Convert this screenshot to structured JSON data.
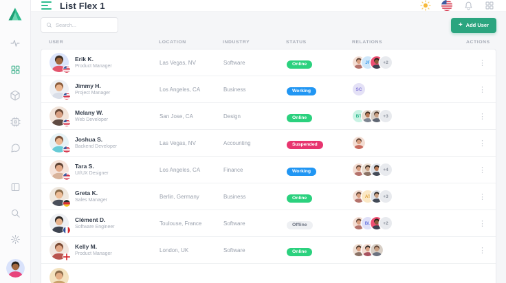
{
  "app": {
    "title": "List Flex 1",
    "accent_green": "#2ba57f",
    "logo_icon": "triangle-logo"
  },
  "sidebar": {
    "nav_icons": [
      {
        "name": "activity-icon",
        "active": false
      },
      {
        "name": "apps-grid-icon",
        "active": true
      },
      {
        "name": "package-icon",
        "active": false
      },
      {
        "name": "cpu-icon",
        "active": false
      },
      {
        "name": "chat-icon",
        "active": false
      }
    ],
    "bottom_icons": [
      {
        "name": "layout-columns-icon"
      },
      {
        "name": "search-icon"
      },
      {
        "name": "gear-icon"
      }
    ],
    "profile_avatar": {
      "bg": "#d9e2fb",
      "skin": "#a3683f",
      "hair": "#26211d",
      "shirt": "#e8447c"
    }
  },
  "topbar": {
    "icons": [
      {
        "name": "theme-sun-icon"
      },
      {
        "name": "language-flag-us-icon"
      },
      {
        "name": "notifications-bell-icon"
      },
      {
        "name": "apps-launcher-icon"
      }
    ]
  },
  "toolbar": {
    "search_placeholder": "Search...",
    "add_user_label": "Add User",
    "add_user_plus": "+"
  },
  "table": {
    "columns": [
      "USER",
      "LOCATION",
      "INDUSTRY",
      "STATUS",
      "RELATIONS",
      "ACTIONS"
    ],
    "status_styles": {
      "online": {
        "bg": "#2bd17e",
        "color": "#ffffff"
      },
      "working": {
        "bg": "#2196f3",
        "color": "#ffffff"
      },
      "suspended": {
        "bg": "#e7356f",
        "color": "#ffffff"
      },
      "offline": {
        "bg": "#eef0f3",
        "color": "#6b7280"
      }
    },
    "rows": [
      {
        "name": "Erik K.",
        "role": "Product Manager",
        "flag": "us",
        "location": "Las Vegas, NV",
        "industry": "Software",
        "status": {
          "label": "Online",
          "type": "online"
        },
        "avatar": {
          "bg": "#dbe4fb",
          "skin": "#a3683f",
          "hair": "#3e2e22",
          "shirt": "#e4556d"
        },
        "relations": [
          {
            "type": "photo",
            "colors": {
              "bg": "#f3ddd3",
              "skin": "#d99f80",
              "hair": "#5f4334",
              "shirt": "#b4726b"
            }
          },
          {
            "type": "initials",
            "text": "JF",
            "bg": "#cfe7fa",
            "color": "#3f9ce9"
          },
          {
            "type": "photo",
            "colors": {
              "bg": "#ee4f72",
              "skin": "#8a5a3b",
              "hair": "#26211d",
              "shirt": "#3c4250"
            }
          },
          {
            "type": "more",
            "text": "+2"
          }
        ]
      },
      {
        "name": "Jimmy H.",
        "role": "Project Manager",
        "flag": "us",
        "location": "Los Angeles, CA",
        "industry": "Business",
        "status": {
          "label": "Working",
          "type": "working"
        },
        "avatar": {
          "bg": "#eef0f4",
          "skin": "#eab58f",
          "hair": "#8a5c3b",
          "shirt": "#d9dee8"
        },
        "relations": [
          {
            "type": "initials",
            "text": "SC",
            "bg": "#e4e1f6",
            "color": "#8278d8"
          }
        ]
      },
      {
        "name": "Melany W.",
        "role": "Web Developer",
        "flag": "us",
        "location": "San Jose, CA",
        "industry": "Design",
        "status": {
          "label": "Online",
          "type": "online"
        },
        "avatar": {
          "bg": "#f2e4da",
          "skin": "#d9a184",
          "hair": "#6b4a38",
          "shirt": "#5f4a42"
        },
        "relations": [
          {
            "type": "initials",
            "text": "BT",
            "bg": "#c9f3e4",
            "color": "#2bb88c"
          },
          {
            "type": "photo",
            "colors": {
              "bg": "#e9dccf",
              "skin": "#b97a55",
              "hair": "#3e2e22",
              "shirt": "#7d8591"
            }
          },
          {
            "type": "photo",
            "colors": {
              "bg": "#d8cfc6",
              "skin": "#caa184",
              "hair": "#4a3628",
              "shirt": "#5f6673"
            }
          },
          {
            "type": "more",
            "text": "+3"
          }
        ]
      },
      {
        "name": "Joshua S.",
        "role": "Backend Developer",
        "flag": "us",
        "location": "Las Vegas, NV",
        "industry": "Accounting",
        "status": {
          "label": "Suspended",
          "type": "suspended"
        },
        "avatar": {
          "bg": "#e6f2f6",
          "skin": "#ecb892",
          "hair": "#7b533a",
          "shirt": "#67cbd6"
        },
        "relations": [
          {
            "type": "photo",
            "colors": {
              "bg": "#f3ddd3",
              "skin": "#d99f80",
              "hair": "#5f4334",
              "shirt": "#c96b5e"
            }
          }
        ]
      },
      {
        "name": "Tara S.",
        "role": "UI/UX Designer",
        "flag": "us",
        "location": "Los Angeles, CA",
        "industry": "Finance",
        "status": {
          "label": "Working",
          "type": "working"
        },
        "avatar": {
          "bg": "#f6e3da",
          "skin": "#e3a988",
          "hair": "#5f4334",
          "shirt": "#d8b29a"
        },
        "relations": [
          {
            "type": "photo",
            "colors": {
              "bg": "#f3ddd3",
              "skin": "#d99f80",
              "hair": "#5f4334",
              "shirt": "#b4726b"
            }
          },
          {
            "type": "photo",
            "colors": {
              "bg": "#e9dccf",
              "skin": "#caa184",
              "hair": "#3e2e22",
              "shirt": "#8a7265"
            }
          },
          {
            "type": "photo",
            "colors": {
              "bg": "#dfe3ea",
              "skin": "#b97a55",
              "hair": "#26211d",
              "shirt": "#434a57"
            }
          },
          {
            "type": "more",
            "text": "+4"
          }
        ]
      },
      {
        "name": "Greta K.",
        "role": "Sales Manager",
        "flag": "de",
        "location": "Berlin, Germany",
        "industry": "Business",
        "status": {
          "label": "Online",
          "type": "online"
        },
        "avatar": {
          "bg": "#efe8df",
          "skin": "#edbd97",
          "hair": "#8a6b4a",
          "shirt": "#4a4f5a"
        },
        "relations": [
          {
            "type": "photo",
            "colors": {
              "bg": "#f3ddd3",
              "skin": "#d99f80",
              "hair": "#5f4334",
              "shirt": "#b4726b"
            }
          },
          {
            "type": "initials",
            "text": "AT",
            "bg": "#fbe8c5",
            "color": "#dfa43c"
          },
          {
            "type": "photo",
            "colors": {
              "bg": "#dfe3ea",
              "skin": "#caa184",
              "hair": "#2f2a26",
              "shirt": "#434a57"
            }
          },
          {
            "type": "more",
            "text": "+3"
          }
        ]
      },
      {
        "name": "Clément D.",
        "role": "Software Engineer",
        "flag": "fr",
        "location": "Toulouse, France",
        "industry": "Software",
        "status": {
          "label": "Offline",
          "type": "offline"
        },
        "avatar": {
          "bg": "#eef0f4",
          "skin": "#e8b48e",
          "hair": "#2f2a26",
          "shirt": "#3e4450"
        },
        "relations": [
          {
            "type": "photo",
            "colors": {
              "bg": "#f3ddd3",
              "skin": "#d99f80",
              "hair": "#5f4334",
              "shirt": "#b4726b"
            }
          },
          {
            "type": "initials",
            "text": "BL",
            "bg": "#dfe0f8",
            "color": "#6f7de0"
          },
          {
            "type": "photo",
            "colors": {
              "bg": "#ee4f72",
              "skin": "#8a5a3b",
              "hair": "#26211d",
              "shirt": "#3c4250"
            }
          },
          {
            "type": "more",
            "text": "+2"
          }
        ]
      },
      {
        "name": "Kelly M.",
        "role": "Product Manager",
        "flag": "en",
        "location": "London, UK",
        "industry": "Software",
        "status": {
          "label": "Online",
          "type": "online"
        },
        "avatar": {
          "bg": "#f1e6df",
          "skin": "#e2a887",
          "hair": "#7a4a33",
          "shirt": "#b9554f"
        },
        "relations": [
          {
            "type": "photo",
            "colors": {
              "bg": "#efe0d6",
              "skin": "#d99f80",
              "hair": "#4a3628",
              "shirt": "#8a7265"
            }
          },
          {
            "type": "photo",
            "colors": {
              "bg": "#f3ddd3",
              "skin": "#d9a184",
              "hair": "#2f2a26",
              "shirt": "#a8525f"
            }
          },
          {
            "type": "photo",
            "colors": {
              "bg": "#d8cfc6",
              "skin": "#caa184",
              "hair": "#5f4334",
              "shirt": "#6b7280"
            }
          }
        ]
      }
    ],
    "partial_row": {
      "avatar": {
        "bg": "#f4e3c0",
        "skin": "#e5b087",
        "hair": "#8a6b4a",
        "shirt": "#caa26b"
      }
    }
  }
}
